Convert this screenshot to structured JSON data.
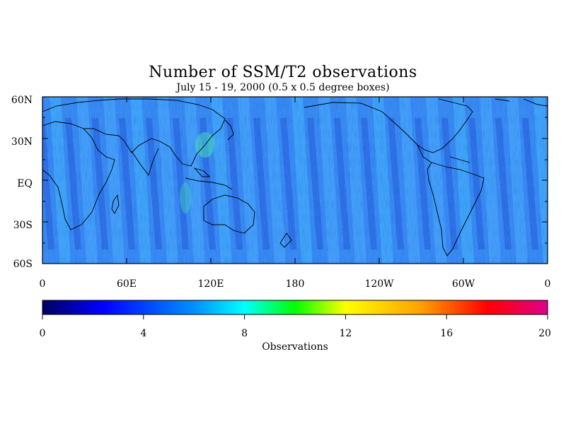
{
  "map": {
    "title": "Number of SSM/T2 observations",
    "subtitle": "July 15 - 19, 2000 (0.5 x 0.5 degree boxes)",
    "lat_labels": [
      "60N",
      "30N",
      "EQ",
      "30S",
      "60S"
    ],
    "lon_labels": [
      "0",
      "60E",
      "120E",
      "180",
      "120W",
      "60W",
      "0"
    ],
    "lat_range": [
      -60,
      60
    ],
    "lon_range": [
      0,
      360
    ],
    "background_color": "#2a6fe8"
  },
  "colorbar": {
    "label": "Observations",
    "tick_labels": [
      "0",
      "4",
      "8",
      "12",
      "16",
      "20"
    ],
    "range": [
      0,
      20
    ],
    "colors": [
      "#000060",
      "#0000ff",
      "#00a0ff",
      "#00ffff",
      "#00ff00",
      "#ffff00",
      "#ffa000",
      "#ff0000",
      "#e0008a"
    ]
  }
}
